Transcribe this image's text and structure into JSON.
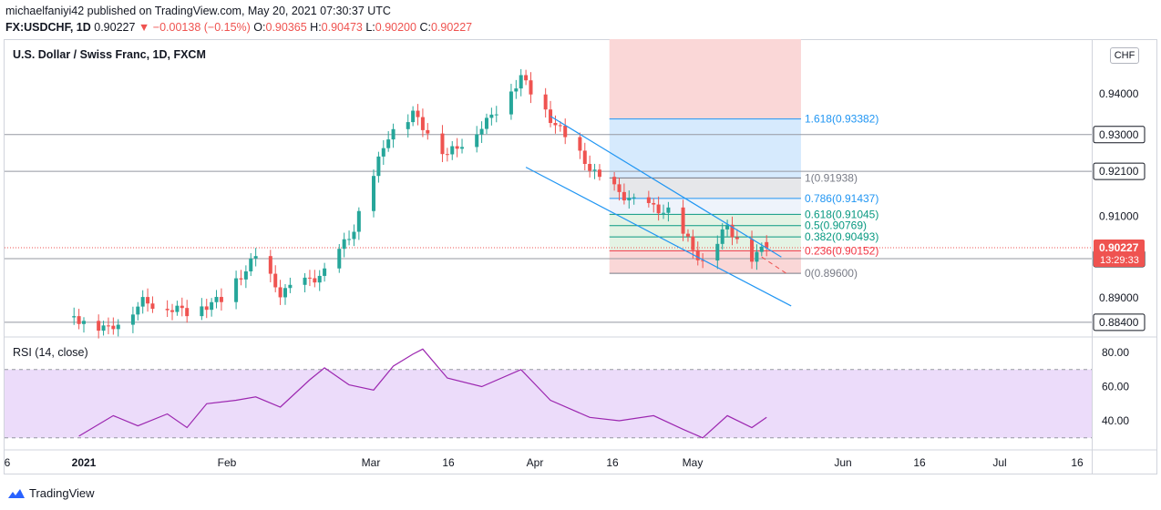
{
  "header": {
    "publisher_line": "michaelfaniyi42 published on TradingView.com, May 20, 2021 07:30:37 UTC",
    "symbol": "FX:USDCHF, 1D",
    "last": "0.90227",
    "arrow": "▼",
    "change": "−0.00138 (−0.15%)",
    "o_label": "O:",
    "o": "0.90365",
    "h_label": "H:",
    "h": "0.90473",
    "l_label": "L:",
    "l": "0.90200",
    "c_label": "C:",
    "c": "0.90227"
  },
  "pane_title": "U.S. Dollar / Swiss Franc, 1D, FXCM",
  "rsi_title": "RSI (14, close)",
  "unit_button": "CHF",
  "footer": {
    "brand": "TradingView"
  },
  "colors": {
    "up": "#26a69a",
    "down": "#ef5350",
    "rsi_line": "#9c27b0",
    "rsi_band": "#ecdcfa",
    "channel": "#2196f3",
    "fib_blue": "#2196f3",
    "fib_gray": "#787b86",
    "fib_green": "#089981",
    "fib_red": "#f23645",
    "target_zone": "#fad7d7",
    "target_blue": "#d6eafd"
  },
  "chart_data": [
    {
      "type": "candlestick",
      "title": "U.S. Dollar / Swiss Franc, 1D, FXCM",
      "y_axis_ticks": [
        "0.94000",
        "0.93000",
        "0.92100",
        "0.91000",
        "0.89960",
        "0.89000",
        "0.88400"
      ],
      "highlighted_levels": [
        "0.93000",
        "0.92100",
        "0.89960",
        "0.88400"
      ],
      "current_price_label": "0.90227",
      "countdown_label": "13:29:33",
      "ylim": [
        0.882,
        0.951
      ],
      "x_ticks": [
        "6",
        "2021",
        "Feb",
        "Mar",
        "16",
        "Apr",
        "16",
        "May",
        "Jun",
        "16",
        "Jul",
        "16"
      ],
      "last_ohlc": {
        "o": 0.90365,
        "h": 0.90473,
        "l": 0.902,
        "c": 0.90227
      },
      "close_path": [
        {
          "x": "2020-12-30",
          "y": 0.8852
        },
        {
          "x": "2021-01-06",
          "y": 0.8822
        },
        {
          "x": "2021-01-13",
          "y": 0.889
        },
        {
          "x": "2021-01-22",
          "y": 0.8866
        },
        {
          "x": "2021-01-29",
          "y": 0.8895
        },
        {
          "x": "2021-02-05",
          "y": 0.9
        },
        {
          "x": "2021-02-10",
          "y": 0.8912
        },
        {
          "x": "2021-02-19",
          "y": 0.896
        },
        {
          "x": "2021-02-25",
          "y": 0.907
        },
        {
          "x": "2021-03-04",
          "y": 0.93
        },
        {
          "x": "2021-03-09",
          "y": 0.935
        },
        {
          "x": "2021-03-16",
          "y": 0.925
        },
        {
          "x": "2021-03-24",
          "y": 0.933
        },
        {
          "x": "2021-03-31",
          "y": 0.944
        },
        {
          "x": "2021-04-06",
          "y": 0.934
        },
        {
          "x": "2021-04-16",
          "y": 0.919
        },
        {
          "x": "2021-04-23",
          "y": 0.9135
        },
        {
          "x": "2021-04-30",
          "y": 0.911
        },
        {
          "x": "2021-05-07",
          "y": 0.8985
        },
        {
          "x": "2021-05-12",
          "y": 0.9075
        },
        {
          "x": "2021-05-17",
          "y": 0.9
        },
        {
          "x": "2021-05-20",
          "y": 0.90227
        }
      ],
      "fibonacci": [
        {
          "label": "1.618(0.93382)",
          "value": 0.93382
        },
        {
          "label": "1(0.91938)",
          "value": 0.91938
        },
        {
          "label": "0.786(0.91437)",
          "value": 0.91437
        },
        {
          "label": "0.618(0.91045)",
          "value": 0.91045
        },
        {
          "label": "0.5(0.90769)",
          "value": 0.90769
        },
        {
          "label": "0.382(0.90493)",
          "value": 0.90493
        },
        {
          "label": "0.236(0.90152)",
          "value": 0.90152
        },
        {
          "label": "0(0.89600)",
          "value": 0.896
        }
      ],
      "channel": {
        "upper": [
          {
            "x": "2021-04-06",
            "y": 0.9345
          },
          {
            "x": "2021-05-23",
            "y": 0.9
          }
        ],
        "lower": [
          {
            "x": "2021-04-01",
            "y": 0.922
          },
          {
            "x": "2021-05-25",
            "y": 0.888
          }
        ]
      },
      "projection": [
        {
          "x": "2021-05-19",
          "y": 0.9
        },
        {
          "x": "2021-05-24",
          "y": 0.896
        }
      ]
    },
    {
      "type": "line",
      "title": "RSI (14, close)",
      "y_axis_ticks": [
        "80.00",
        "60.00",
        "40.00"
      ],
      "band": [
        30,
        70
      ],
      "ylim": [
        26,
        84
      ],
      "series": [
        {
          "values": [
            {
              "x": "2020-12-31",
              "y": 31
            },
            {
              "x": "2021-01-07",
              "y": 43
            },
            {
              "x": "2021-01-12",
              "y": 37
            },
            {
              "x": "2021-01-18",
              "y": 44
            },
            {
              "x": "2021-01-22",
              "y": 36
            },
            {
              "x": "2021-01-26",
              "y": 50
            },
            {
              "x": "2021-02-01",
              "y": 52
            },
            {
              "x": "2021-02-05",
              "y": 54
            },
            {
              "x": "2021-02-10",
              "y": 48
            },
            {
              "x": "2021-02-16",
              "y": 64
            },
            {
              "x": "2021-02-19",
              "y": 71
            },
            {
              "x": "2021-02-24",
              "y": 61
            },
            {
              "x": "2021-03-01",
              "y": 58
            },
            {
              "x": "2021-03-05",
              "y": 72
            },
            {
              "x": "2021-03-09",
              "y": 79
            },
            {
              "x": "2021-03-11",
              "y": 82
            },
            {
              "x": "2021-03-16",
              "y": 65
            },
            {
              "x": "2021-03-23",
              "y": 60
            },
            {
              "x": "2021-03-31",
              "y": 70
            },
            {
              "x": "2021-04-06",
              "y": 52
            },
            {
              "x": "2021-04-14",
              "y": 42
            },
            {
              "x": "2021-04-20",
              "y": 40
            },
            {
              "x": "2021-04-27",
              "y": 43
            },
            {
              "x": "2021-05-03",
              "y": 35
            },
            {
              "x": "2021-05-07",
              "y": 30
            },
            {
              "x": "2021-05-12",
              "y": 43
            },
            {
              "x": "2021-05-17",
              "y": 36
            },
            {
              "x": "2021-05-20",
              "y": 42
            }
          ]
        }
      ]
    }
  ]
}
